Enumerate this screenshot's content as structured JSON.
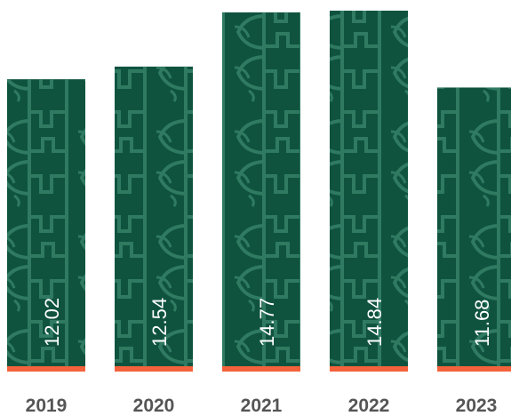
{
  "colors": {
    "bar_fill": "#0f533f",
    "pattern_stroke": "#2f7a61",
    "baseline_accent": "#f4623b",
    "value_text": "#ffffff",
    "axis_text": "#555555"
  },
  "chart_data": {
    "type": "bar",
    "title": "",
    "xlabel": "",
    "ylabel": "",
    "categories": [
      "2019",
      "2020",
      "2021",
      "2022",
      "2023"
    ],
    "values": [
      12.02,
      12.54,
      14.77,
      14.84,
      11.68
    ],
    "value_labels": [
      "12.02",
      "12.54",
      "14.77",
      "14.84",
      "11.68"
    ],
    "ylim": [
      0,
      14.84
    ],
    "grid": false,
    "legend": "none",
    "bar_pattern": "ornamental-arch-lattice"
  }
}
